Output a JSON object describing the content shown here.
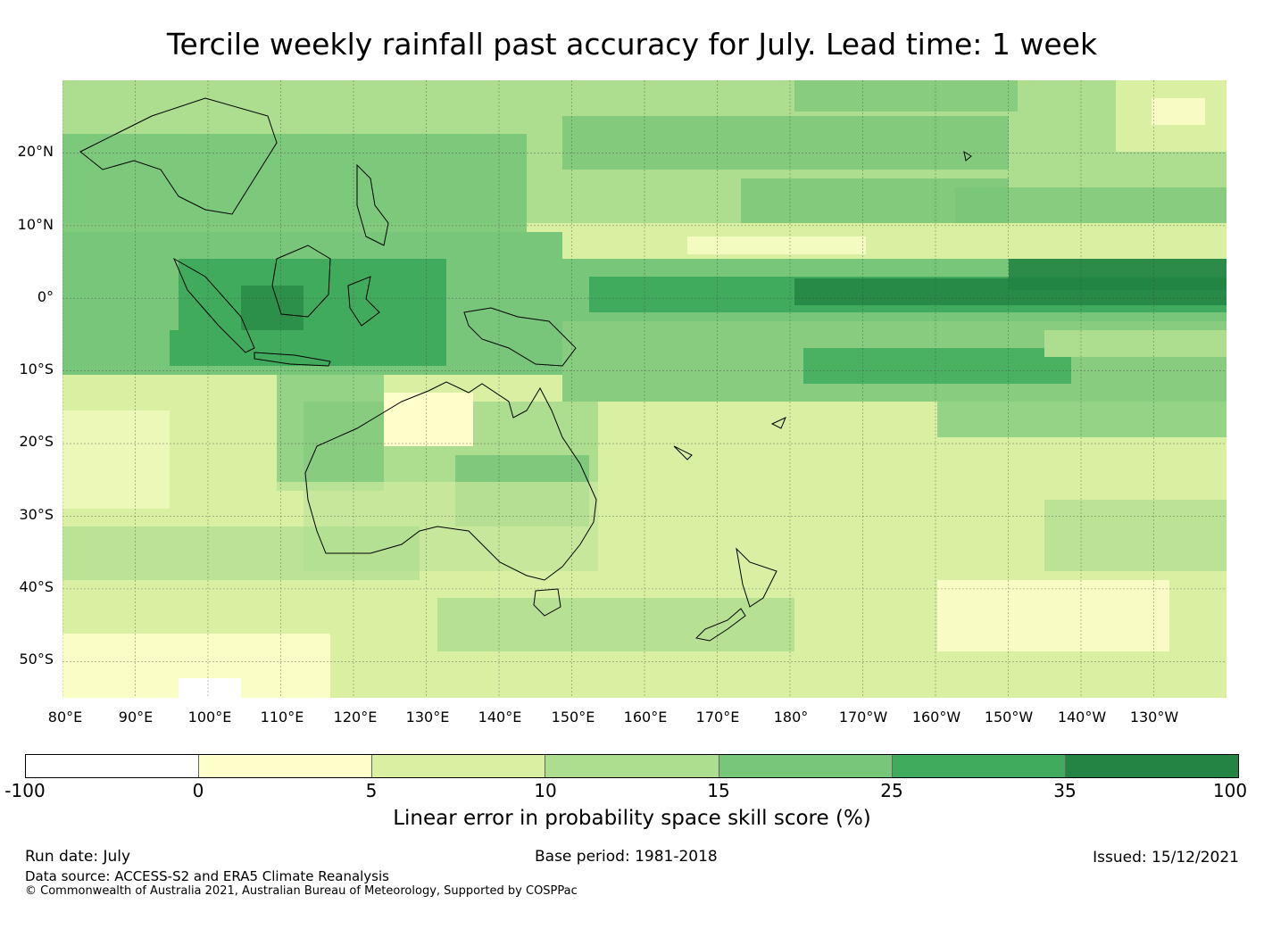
{
  "title": "Tercile weekly rainfall past accuracy for July. Lead time: 1 week",
  "map": {
    "region": "Western Pacific / Australia",
    "lat_labels": [
      "20°N",
      "10°N",
      "0°",
      "10°S",
      "20°S",
      "30°S",
      "40°S",
      "50°S"
    ],
    "lon_labels": [
      "80°E",
      "90°E",
      "100°E",
      "110°E",
      "120°E",
      "130°E",
      "140°E",
      "150°E",
      "160°E",
      "170°E",
      "180°",
      "170°W",
      "160°W",
      "150°W",
      "140°W",
      "130°W"
    ],
    "gridlines": true,
    "extent_lon": [
      80,
      240
    ],
    "extent_lat": [
      -55,
      30
    ]
  },
  "colorbar": {
    "ticks": [
      "-100",
      "0",
      "5",
      "10",
      "15",
      "25",
      "35",
      "100"
    ],
    "colors": [
      "#ffffff",
      "#ffffcc",
      "#d9f0a3",
      "#addd8e",
      "#78c679",
      "#41ab5d",
      "#238443"
    ],
    "label": "Linear error in probability space skill score (%)"
  },
  "footer": {
    "run_date": "Run date: July",
    "base_period": "Base period: 1981-2018",
    "issued": "Issued: 15/12/2021",
    "data_source": "Data source: ACCESS-S2 and ERA5 Climate Reanalysis",
    "copyright": "© Commonwealth of Australia 2021, Australian Bureau of Meteorology, Supported by COSPPac"
  }
}
